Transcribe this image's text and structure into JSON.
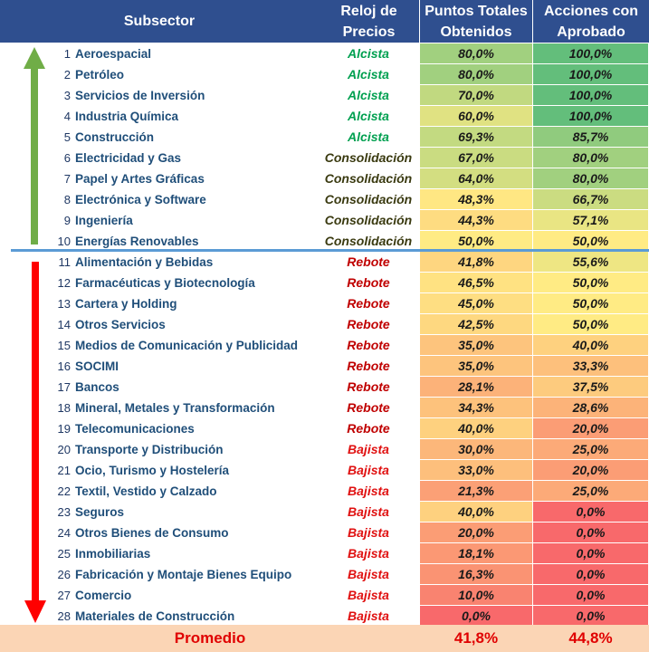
{
  "header": {
    "subsector": "Subsector",
    "reloj_line1": "Reloj de",
    "reloj_line2": "Precios",
    "puntos_line1": "Puntos Totales",
    "puntos_line2": "Obtenidos",
    "acciones_line1": "Acciones con",
    "acciones_line2": "Aprobado"
  },
  "colors": {
    "header_bg": "#2f4f8f",
    "alcista": "#00a050",
    "consolidacion": "#3a3a10",
    "rebote": "#c00000",
    "bajista": "#e01010",
    "up_arrow": "#70ad47",
    "down_arrow": "#ff0000",
    "divider": "#5b9bd5",
    "average_bg": "#fbd5b5"
  },
  "icons": {
    "up": "up-arrow-icon",
    "down": "down-arrow-icon"
  },
  "rows": [
    {
      "num": "1",
      "name": "Aeroespacial",
      "trend": "Alcista",
      "puntos": "80,0%",
      "acciones": "100,0%"
    },
    {
      "num": "2",
      "name": "Petróleo",
      "trend": "Alcista",
      "puntos": "80,0%",
      "acciones": "100,0%"
    },
    {
      "num": "3",
      "name": "Servicios de Inversión",
      "trend": "Alcista",
      "puntos": "70,0%",
      "acciones": "100,0%"
    },
    {
      "num": "4",
      "name": "Industria Química",
      "trend": "Alcista",
      "puntos": "60,0%",
      "acciones": "100,0%"
    },
    {
      "num": "5",
      "name": "Construcción",
      "trend": "Alcista",
      "puntos": "69,3%",
      "acciones": "85,7%"
    },
    {
      "num": "6",
      "name": "Electricidad y Gas",
      "trend": "Consolidación",
      "puntos": "67,0%",
      "acciones": "80,0%"
    },
    {
      "num": "7",
      "name": "Papel y Artes Gráficas",
      "trend": "Consolidación",
      "puntos": "64,0%",
      "acciones": "80,0%"
    },
    {
      "num": "8",
      "name": "Electrónica y Software",
      "trend": "Consolidación",
      "puntos": "48,3%",
      "acciones": "66,7%"
    },
    {
      "num": "9",
      "name": "Ingeniería",
      "trend": "Consolidación",
      "puntos": "44,3%",
      "acciones": "57,1%"
    },
    {
      "num": "10",
      "name": "Energías Renovables",
      "trend": "Consolidación",
      "puntos": "50,0%",
      "acciones": "50,0%"
    },
    {
      "num": "11",
      "name": "Alimentación y Bebidas",
      "trend": "Rebote",
      "puntos": "41,8%",
      "acciones": "55,6%"
    },
    {
      "num": "12",
      "name": "Farmacéuticas y Biotecnología",
      "trend": "Rebote",
      "puntos": "46,5%",
      "acciones": "50,0%"
    },
    {
      "num": "13",
      "name": "Cartera y Holding",
      "trend": "Rebote",
      "puntos": "45,0%",
      "acciones": "50,0%"
    },
    {
      "num": "14",
      "name": "Otros Servicios",
      "trend": "Rebote",
      "puntos": "42,5%",
      "acciones": "50,0%"
    },
    {
      "num": "15",
      "name": "Medios de Comunicación y Publicidad",
      "trend": "Rebote",
      "puntos": "35,0%",
      "acciones": "40,0%"
    },
    {
      "num": "16",
      "name": "SOCIMI",
      "trend": "Rebote",
      "puntos": "35,0%",
      "acciones": "33,3%"
    },
    {
      "num": "17",
      "name": "Bancos",
      "trend": "Rebote",
      "puntos": "28,1%",
      "acciones": "37,5%"
    },
    {
      "num": "18",
      "name": "Mineral, Metales y Transformación",
      "trend": "Rebote",
      "puntos": "34,3%",
      "acciones": "28,6%"
    },
    {
      "num": "19",
      "name": "Telecomunicaciones",
      "trend": "Rebote",
      "puntos": "40,0%",
      "acciones": "20,0%"
    },
    {
      "num": "20",
      "name": "Transporte y Distribución",
      "trend": "Bajista",
      "puntos": "30,0%",
      "acciones": "25,0%"
    },
    {
      "num": "21",
      "name": "Ocio, Turismo y Hostelería",
      "trend": "Bajista",
      "puntos": "33,0%",
      "acciones": "20,0%"
    },
    {
      "num": "22",
      "name": "Textil, Vestido y Calzado",
      "trend": "Bajista",
      "puntos": "21,3%",
      "acciones": "25,0%"
    },
    {
      "num": "23",
      "name": "Seguros",
      "trend": "Bajista",
      "puntos": "40,0%",
      "acciones": "0,0%"
    },
    {
      "num": "24",
      "name": "Otros Bienes de Consumo",
      "trend": "Bajista",
      "puntos": "20,0%",
      "acciones": "0,0%"
    },
    {
      "num": "25",
      "name": "Inmobiliarias",
      "trend": "Bajista",
      "puntos": "18,1%",
      "acciones": "0,0%"
    },
    {
      "num": "26",
      "name": "Fabricación y Montaje Bienes Equipo",
      "trend": "Bajista",
      "puntos": "16,3%",
      "acciones": "0,0%"
    },
    {
      "num": "27",
      "name": "Comercio",
      "trend": "Bajista",
      "puntos": "10,0%",
      "acciones": "0,0%"
    },
    {
      "num": "28",
      "name": "Materiales de Construcción",
      "trend": "Bajista",
      "puntos": "0,0%",
      "acciones": "0,0%"
    }
  ],
  "average": {
    "label": "Promedio",
    "puntos": "41,8%",
    "acciones": "44,8%"
  }
}
